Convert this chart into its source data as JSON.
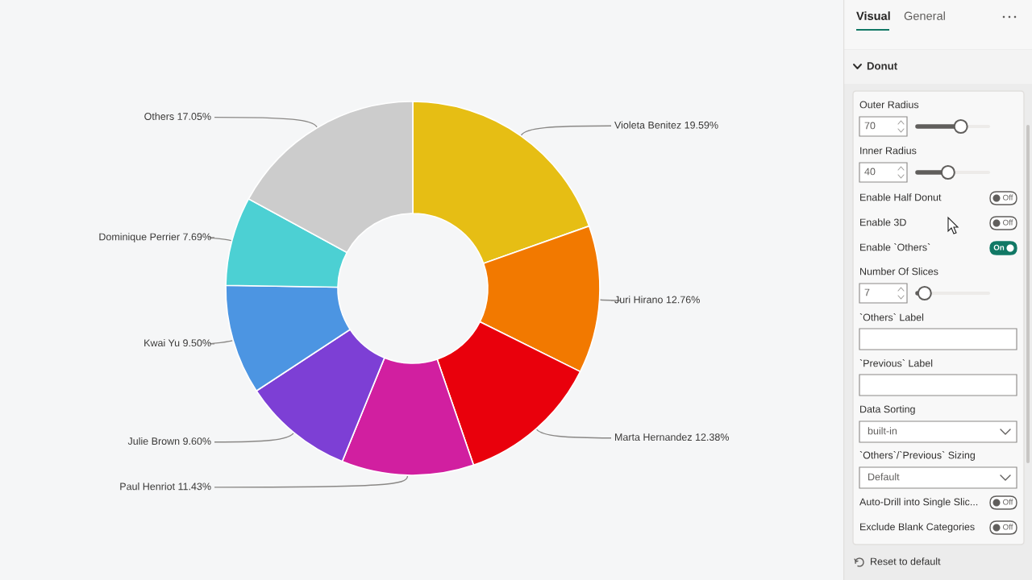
{
  "chart_data": [
    {
      "type": "donut",
      "categories": [
        "Violeta Benitez",
        "Juri Hirano",
        "Marta Hernandez",
        "Paul Henriot",
        "Julie Brown",
        "Kwai Yu",
        "Dominique Perrier",
        "Others"
      ],
      "values": [
        19.59,
        12.76,
        12.38,
        11.43,
        9.6,
        9.5,
        7.69,
        17.05
      ],
      "value_labels": [
        "19.59%",
        "12.76%",
        "12.38%",
        "11.43%",
        "9.60%",
        "9.50%",
        "7.69%",
        "17.05%"
      ],
      "colors": [
        "#e6be14",
        "#f27900",
        "#e9000c",
        "#d11fa0",
        "#7d3fd5",
        "#4c95e2",
        "#4cd0d3",
        "#cccccc"
      ]
    },
    {
      "type": "other",
      "annotations": [
        "Visual",
        "General",
        "Donut",
        "Outer Radius",
        "70",
        "Inner Radius",
        "40",
        "Enable Half Donut",
        "Off",
        "Enable 3D",
        "Off",
        "Enable `Others`",
        "On",
        "Number Of Slices",
        "7",
        "`Others` Label",
        "`Previous` Label",
        "Data Sorting",
        "built-in",
        "`Others`/`Previous` Sizing",
        "Default",
        "Auto-Drill into Single Slic...",
        "Off",
        "Exclude Blank Categories",
        "Off",
        "Reset to default"
      ]
    }
  ]
}
